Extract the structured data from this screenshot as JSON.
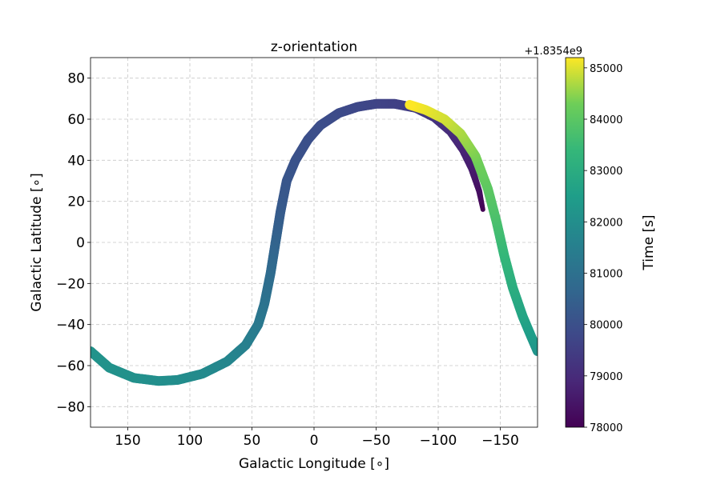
{
  "chart_data": {
    "type": "scatter",
    "title": "z-orientation",
    "xlabel": "Galactic Longitude [∘]",
    "ylabel": "Galactic Latitude [∘]",
    "xlim": [
      180,
      -180
    ],
    "ylim": [
      -90,
      90
    ],
    "x_ticks": [
      150,
      100,
      50,
      0,
      -50,
      -100,
      -150
    ],
    "x_tick_labels": [
      "150",
      "100",
      "50",
      "0",
      "−50",
      "−100",
      "−150"
    ],
    "y_ticks": [
      80,
      60,
      40,
      20,
      0,
      -20,
      -40,
      -60,
      -80
    ],
    "y_tick_labels": [
      "80",
      "60",
      "40",
      "20",
      "0",
      "−20",
      "−40",
      "−60",
      "−80"
    ],
    "grid": true,
    "colorbar": {
      "label": "Time [s]",
      "offset_text": "+1.8354e9",
      "range": [
        78000,
        85200
      ],
      "ticks": [
        78000,
        79000,
        80000,
        81000,
        82000,
        83000,
        84000,
        85000
      ],
      "tick_labels": [
        "78000",
        "79000",
        "80000",
        "81000",
        "82000",
        "83000",
        "84000",
        "85000"
      ],
      "colormap": "viridis"
    },
    "series": [
      {
        "segment": "early",
        "points": [
          {
            "lon": -136,
            "lat": 16,
            "t": 78000
          },
          {
            "lon": -133,
            "lat": 25,
            "t": 78300
          },
          {
            "lon": -127,
            "lat": 36,
            "t": 78600
          },
          {
            "lon": -120,
            "lat": 45,
            "t": 78800
          },
          {
            "lon": -110,
            "lat": 54,
            "t": 79000
          },
          {
            "lon": -97,
            "lat": 61,
            "t": 79200
          },
          {
            "lon": -82,
            "lat": 65.5,
            "t": 79400
          },
          {
            "lon": -65,
            "lat": 67.5,
            "t": 79550
          },
          {
            "lon": -50,
            "lat": 67.5,
            "t": 79650
          },
          {
            "lon": -35,
            "lat": 66,
            "t": 79750
          },
          {
            "lon": -20,
            "lat": 63,
            "t": 79850
          },
          {
            "lon": -5,
            "lat": 57,
            "t": 79920
          },
          {
            "lon": 5,
            "lat": 50,
            "t": 79980
          },
          {
            "lon": 15,
            "lat": 40,
            "t": 80050
          },
          {
            "lon": 22,
            "lat": 30,
            "t": 80150
          },
          {
            "lon": 27,
            "lat": 15,
            "t": 80300
          },
          {
            "lon": 31,
            "lat": 0,
            "t": 80550
          },
          {
            "lon": 35,
            "lat": -15,
            "t": 80800
          },
          {
            "lon": 40,
            "lat": -30,
            "t": 81050
          },
          {
            "lon": 45,
            "lat": -40,
            "t": 81250
          },
          {
            "lon": 55,
            "lat": -50,
            "t": 81500
          },
          {
            "lon": 70,
            "lat": -58,
            "t": 81700
          },
          {
            "lon": 90,
            "lat": -64,
            "t": 81850
          },
          {
            "lon": 110,
            "lat": -67,
            "t": 81950
          },
          {
            "lon": 125,
            "lat": -67.5,
            "t": 82000
          },
          {
            "lon": 145,
            "lat": -66,
            "t": 82050
          },
          {
            "lon": 165,
            "lat": -61,
            "t": 82100
          },
          {
            "lon": 180,
            "lat": -53,
            "t": 82150
          }
        ]
      },
      {
        "segment": "late",
        "points": [
          {
            "lon": -180,
            "lat": -53,
            "t": 82150
          },
          {
            "lon": -175,
            "lat": -46,
            "t": 82400
          },
          {
            "lon": -168,
            "lat": -36,
            "t": 82700
          },
          {
            "lon": -160,
            "lat": -22,
            "t": 83000
          },
          {
            "lon": -153,
            "lat": -6,
            "t": 83350
          },
          {
            "lon": -147,
            "lat": 10,
            "t": 83700
          },
          {
            "lon": -140,
            "lat": 26,
            "t": 84000
          },
          {
            "lon": -130,
            "lat": 42,
            "t": 84350
          },
          {
            "lon": -118,
            "lat": 53,
            "t": 84650
          },
          {
            "lon": -105,
            "lat": 60,
            "t": 84900
          },
          {
            "lon": -90,
            "lat": 64.5,
            "t": 85050
          },
          {
            "lon": -77,
            "lat": 67,
            "t": 85200
          }
        ]
      }
    ]
  }
}
